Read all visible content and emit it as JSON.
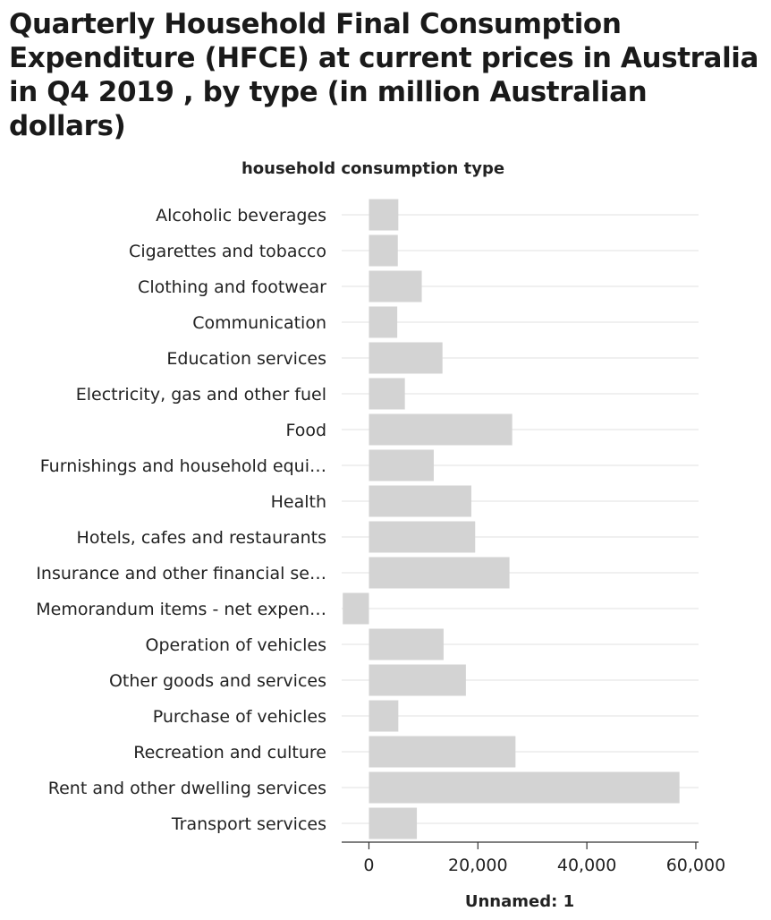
{
  "chart_data": {
    "type": "bar",
    "orientation": "horizontal",
    "title": "Quarterly Household Final Consumption Expenditure (HFCE) at current prices in Australia in Q4 2019 , by type (in million Australian dollars)",
    "ylabel": "household consumption type",
    "xlabel": "Unnamed: 1",
    "categories": [
      "Alcoholic beverages",
      "Cigarettes and tobacco",
      "Clothing and footwear",
      "Communication",
      "Education services",
      "Electricity, gas and other fuel",
      "Food",
      "Furnishings and household equi…",
      "Health",
      "Hotels, cafes and restaurants",
      "Insurance and other financial se…",
      "Memorandum items - net expen…",
      "Operation of vehicles",
      "Other goods and services",
      "Purchase of vehicles",
      "Recreation and culture",
      "Rent and other dwelling services",
      "Transport services"
    ],
    "values": [
      5400,
      5300,
      9700,
      5200,
      13500,
      6600,
      26300,
      11900,
      18800,
      19500,
      25800,
      -4800,
      13700,
      17800,
      5400,
      26900,
      57000,
      8800
    ],
    "xlim": [
      -5000,
      60500
    ],
    "xticks": [
      0,
      20000,
      40000,
      60000
    ],
    "xtick_labels": [
      "0",
      "20,000",
      "40,000",
      "60,000"
    ],
    "grid": "horizontal",
    "colors": {
      "bar": "#d3d3d3",
      "grid": "#e2e2e2",
      "axis": "#333333"
    }
  }
}
